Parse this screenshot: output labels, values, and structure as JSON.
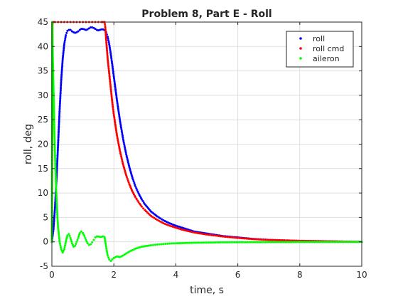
{
  "chart_data": {
    "type": "scatter",
    "title": "Problem 8, Part E - Roll",
    "xlabel": "time, s",
    "ylabel": "roll, deg",
    "xlim": [
      0,
      10
    ],
    "ylim": [
      -5,
      45
    ],
    "xticks": [
      0,
      2,
      4,
      6,
      8,
      10
    ],
    "yticks": [
      -5,
      0,
      5,
      10,
      15,
      20,
      25,
      30,
      35,
      40,
      45
    ],
    "grid": true,
    "legend_position": "top-right",
    "series": [
      {
        "name": "roll",
        "color": "#0000ff",
        "x": [
          0,
          0.05,
          0.1,
          0.15,
          0.2,
          0.25,
          0.3,
          0.35,
          0.4,
          0.45,
          0.5,
          0.55,
          0.6,
          0.65,
          0.7,
          0.75,
          0.8,
          0.85,
          0.9,
          0.95,
          1.0,
          1.05,
          1.1,
          1.15,
          1.2,
          1.25,
          1.3,
          1.35,
          1.4,
          1.45,
          1.5,
          1.55,
          1.6,
          1.65,
          1.7,
          1.75,
          1.8,
          1.85,
          1.9,
          1.95,
          2.0,
          2.1,
          2.2,
          2.3,
          2.4,
          2.5,
          2.6,
          2.7,
          2.8,
          2.9,
          3.0,
          3.2,
          3.4,
          3.6,
          3.8,
          4.0,
          4.2,
          4.4,
          4.6,
          4.8,
          5.0,
          5.5,
          6.0,
          6.5,
          7.0,
          7.5,
          8.0,
          8.5,
          9.0,
          9.5,
          10.0
        ],
        "y": [
          0,
          2.5,
          7,
          13,
          20,
          27,
          33,
          37.5,
          40.5,
          42.3,
          43.2,
          43.4,
          43.4,
          43.1,
          42.9,
          42.8,
          42.9,
          43.1,
          43.4,
          43.6,
          43.6,
          43.5,
          43.4,
          43.5,
          43.7,
          43.9,
          43.9,
          43.8,
          43.6,
          43.4,
          43.3,
          43.4,
          43.5,
          43.5,
          43.3,
          42.9,
          42.0,
          40.5,
          38.5,
          36.2,
          33.8,
          29.0,
          24.7,
          21.0,
          17.9,
          15.3,
          13.1,
          11.3,
          9.9,
          8.7,
          7.7,
          6.2,
          5.2,
          4.4,
          3.8,
          3.3,
          2.9,
          2.5,
          2.1,
          1.9,
          1.7,
          1.2,
          0.9,
          0.6,
          0.4,
          0.3,
          0.2,
          0.15,
          0.1,
          0.05,
          0.0
        ]
      },
      {
        "name": "roll cmd",
        "color": "#ff0000",
        "x": [
          0,
          0.02,
          0.05,
          0.1,
          0.2,
          0.3,
          0.4,
          0.5,
          0.6,
          0.7,
          0.8,
          0.9,
          1.0,
          1.1,
          1.2,
          1.3,
          1.4,
          1.5,
          1.6,
          1.65,
          1.7,
          1.72,
          1.75,
          1.8,
          1.85,
          1.9,
          1.95,
          2.0,
          2.1,
          2.2,
          2.3,
          2.4,
          2.5,
          2.6,
          2.7,
          2.8,
          2.9,
          3.0,
          3.2,
          3.4,
          3.6,
          3.8,
          4.0,
          4.2,
          4.4,
          4.6,
          4.8,
          5.0,
          5.5,
          6.0,
          6.5,
          7.0,
          7.5,
          8.0,
          8.5,
          9.0,
          9.5,
          10.0
        ],
        "y": [
          0,
          45,
          45,
          45,
          45,
          45,
          45,
          45,
          45,
          45,
          45,
          45,
          45,
          45,
          45,
          45,
          45,
          45,
          45,
          45,
          45,
          44.2,
          41.5,
          37.5,
          34.5,
          31.5,
          28.5,
          26.0,
          21.8,
          18.5,
          15.8,
          13.6,
          11.8,
          10.3,
          9.1,
          8.1,
          7.2,
          6.5,
          5.3,
          4.5,
          3.8,
          3.3,
          2.9,
          2.5,
          2.2,
          1.9,
          1.7,
          1.5,
          1.1,
          0.8,
          0.55,
          0.4,
          0.3,
          0.2,
          0.15,
          0.1,
          0.05,
          0.0
        ]
      },
      {
        "name": "aileron",
        "color": "#00ff00",
        "x": [
          0,
          0.01,
          0.02,
          0.04,
          0.06,
          0.08,
          0.1,
          0.12,
          0.15,
          0.18,
          0.2,
          0.25,
          0.3,
          0.35,
          0.4,
          0.45,
          0.5,
          0.55,
          0.6,
          0.65,
          0.7,
          0.75,
          0.8,
          0.85,
          0.9,
          0.95,
          1.0,
          1.05,
          1.1,
          1.15,
          1.2,
          1.25,
          1.3,
          1.35,
          1.4,
          1.45,
          1.5,
          1.55,
          1.6,
          1.65,
          1.7,
          1.75,
          1.8,
          1.85,
          1.9,
          1.95,
          2.0,
          2.1,
          2.2,
          2.3,
          2.4,
          2.5,
          2.6,
          2.7,
          2.8,
          2.9,
          3.0,
          3.2,
          3.4,
          3.6,
          3.8,
          4.0,
          4.5,
          5.0,
          5.5,
          6.0,
          7.0,
          8.0,
          9.0,
          10.0
        ],
        "y": [
          0,
          45,
          41,
          35,
          29,
          23,
          18,
          14,
          9,
          5,
          3,
          0,
          -1.5,
          -2.2,
          -1.5,
          0,
          1.3,
          1.6,
          0.8,
          -0.3,
          -1.0,
          -0.8,
          0,
          0.8,
          1.8,
          2.1,
          1.8,
          1.2,
          0.4,
          -0.3,
          -0.6,
          -0.5,
          -0.1,
          0.4,
          0.9,
          1.1,
          1.1,
          1.0,
          1.0,
          1.1,
          1.0,
          -1.0,
          -2.8,
          -3.6,
          -3.9,
          -3.6,
          -3.3,
          -3.0,
          -3.1,
          -2.8,
          -2.4,
          -2.0,
          -1.7,
          -1.4,
          -1.2,
          -1.0,
          -0.9,
          -0.7,
          -0.55,
          -0.45,
          -0.35,
          -0.3,
          -0.2,
          -0.15,
          -0.1,
          -0.08,
          -0.05,
          -0.03,
          -0.02,
          0.0
        ]
      }
    ]
  }
}
